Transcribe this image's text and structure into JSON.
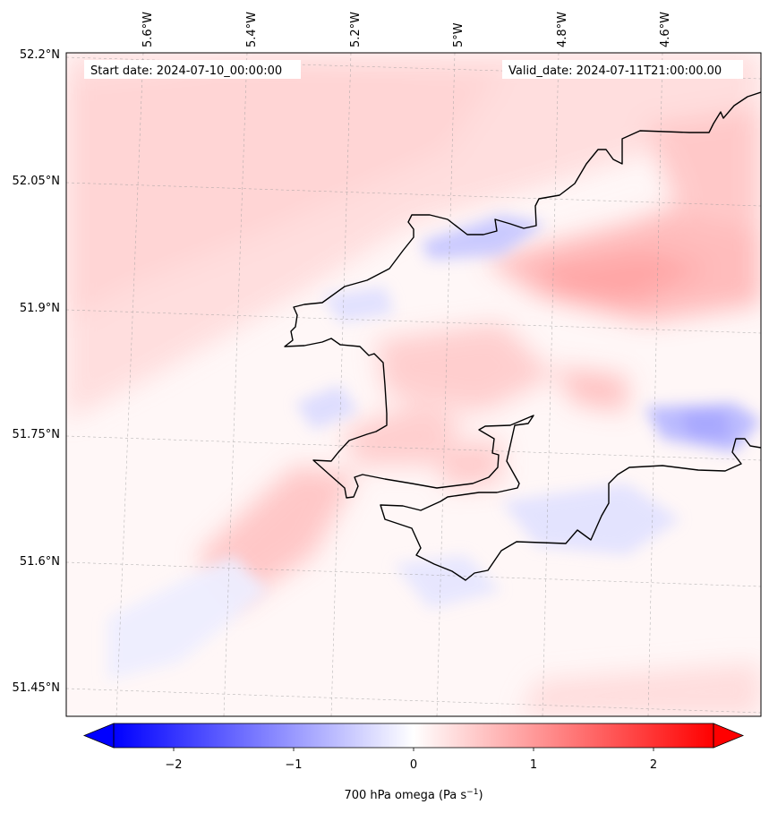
{
  "map": {
    "start_date_label": "Start date: 2024-07-10_00:00:00",
    "valid_date_label": "Valid_date: 2024-07-11T21:00:00.00",
    "lon_labels": [
      "5.6°W",
      "5.4°W",
      "5.2°W",
      "5°W",
      "4.8°W",
      "4.6°W"
    ],
    "lat_labels": [
      "52.2°N",
      "52.05°N",
      "51.9°N",
      "51.75°N",
      "51.6°N",
      "51.45°N"
    ],
    "variable": "700 hPa omega",
    "colormap": "bwr",
    "color_low": "#0000ff",
    "color_mid": "#ffffff",
    "color_high": "#ff0000",
    "coastline_color": "#000000",
    "gridlines": true
  },
  "colorbar": {
    "ticks": [
      "−2",
      "−1",
      "0",
      "1",
      "2"
    ],
    "range": [
      -2.6,
      2.6
    ],
    "extend": "both",
    "label_main": "700 hPa omega (Pa s",
    "label_exp": "−1",
    "label_close": ")"
  }
}
